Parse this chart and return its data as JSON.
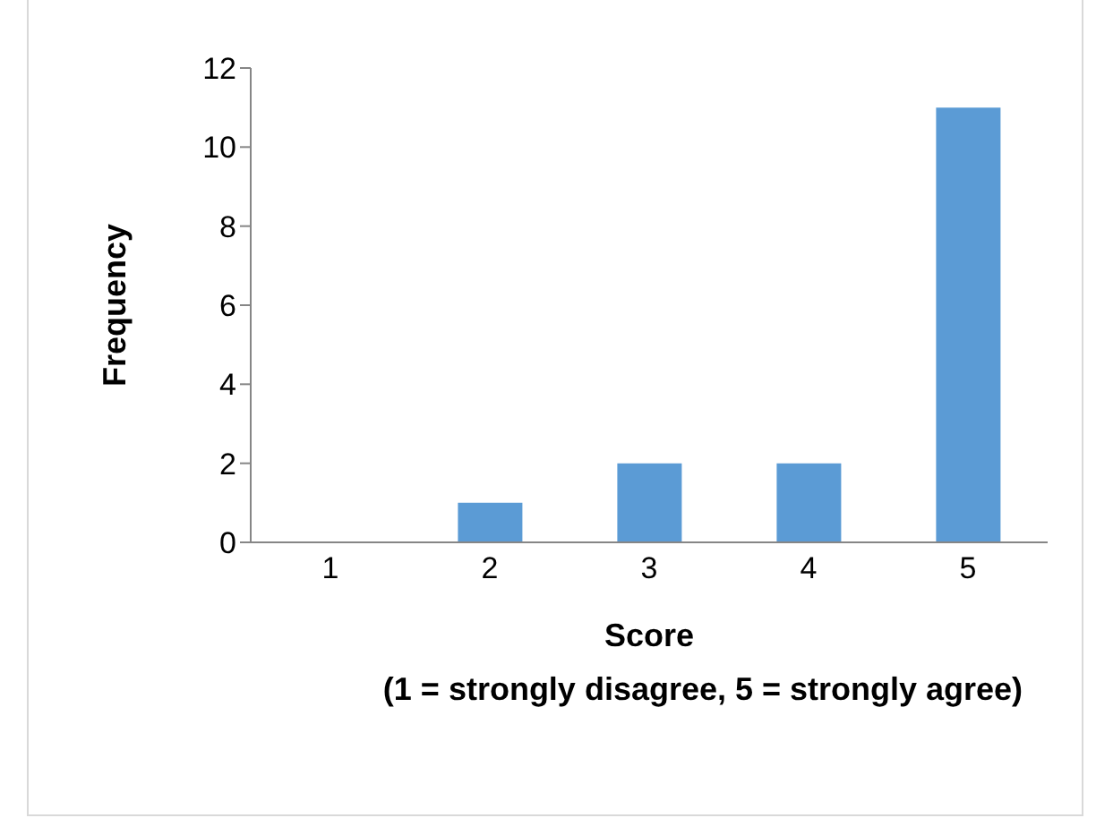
{
  "chart_data": {
    "type": "bar",
    "xlabel": "Score\n(1 = strongly disagree, 5 = strongly agree)",
    "ylabel": "Frequency",
    "categories": [
      "1",
      "2",
      "3",
      "4",
      "5"
    ],
    "values": [
      0,
      1,
      2,
      2,
      11
    ],
    "color": "#5b9bd5",
    "ylim": [
      0,
      12
    ],
    "yticks": [
      0,
      2,
      4,
      6,
      8,
      10,
      12
    ],
    "grid": false
  }
}
